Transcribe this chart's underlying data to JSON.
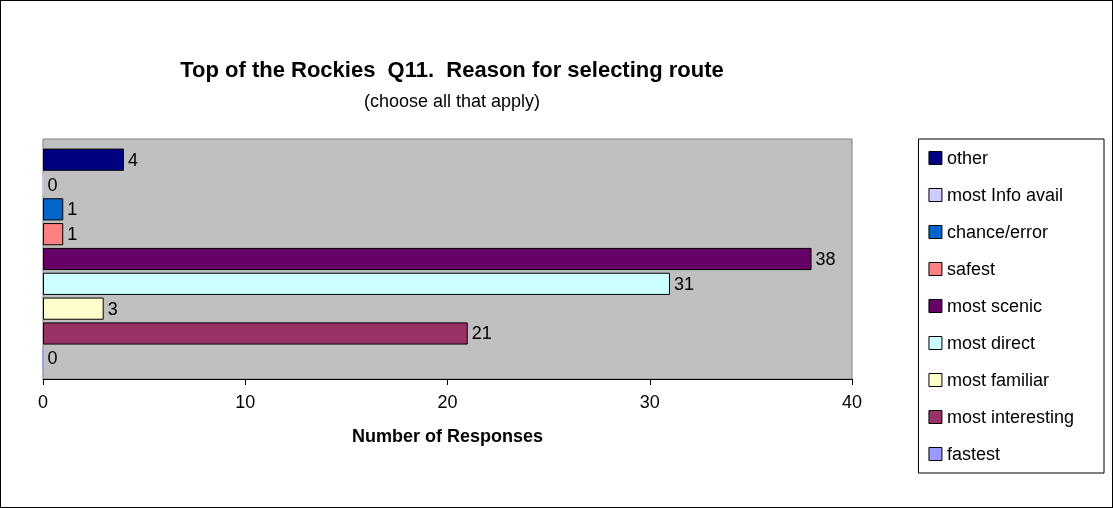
{
  "chart_data": {
    "type": "bar",
    "orientation": "horizontal",
    "title": "Top of the Rockies  Q11.  Reason for selecting route",
    "subtitle": "(choose all that apply)",
    "xlabel": "Number of Responses",
    "categories": [
      null
    ],
    "series": [
      {
        "name": "other",
        "color": "#000080",
        "values": [
          4
        ]
      },
      {
        "name": "most Info avail",
        "color": "#ccccff",
        "values": [
          0
        ]
      },
      {
        "name": "chance/error",
        "color": "#0066cc",
        "values": [
          1
        ]
      },
      {
        "name": "safest",
        "color": "#ff8080",
        "values": [
          1
        ]
      },
      {
        "name": "most scenic",
        "color": "#660066",
        "values": [
          38
        ]
      },
      {
        "name": "most direct",
        "color": "#ccffff",
        "values": [
          31
        ]
      },
      {
        "name": "most familiar",
        "color": "#ffffcc",
        "values": [
          3
        ]
      },
      {
        "name": "most interesting",
        "color": "#993366",
        "values": [
          21
        ]
      },
      {
        "name": "fastest",
        "color": "#9999ff",
        "values": [
          0
        ]
      }
    ],
    "xlim": [
      0,
      40
    ],
    "xticks": [
      0,
      10,
      20,
      30,
      40
    ],
    "grid": false,
    "legend": "right",
    "data_labels": true
  }
}
